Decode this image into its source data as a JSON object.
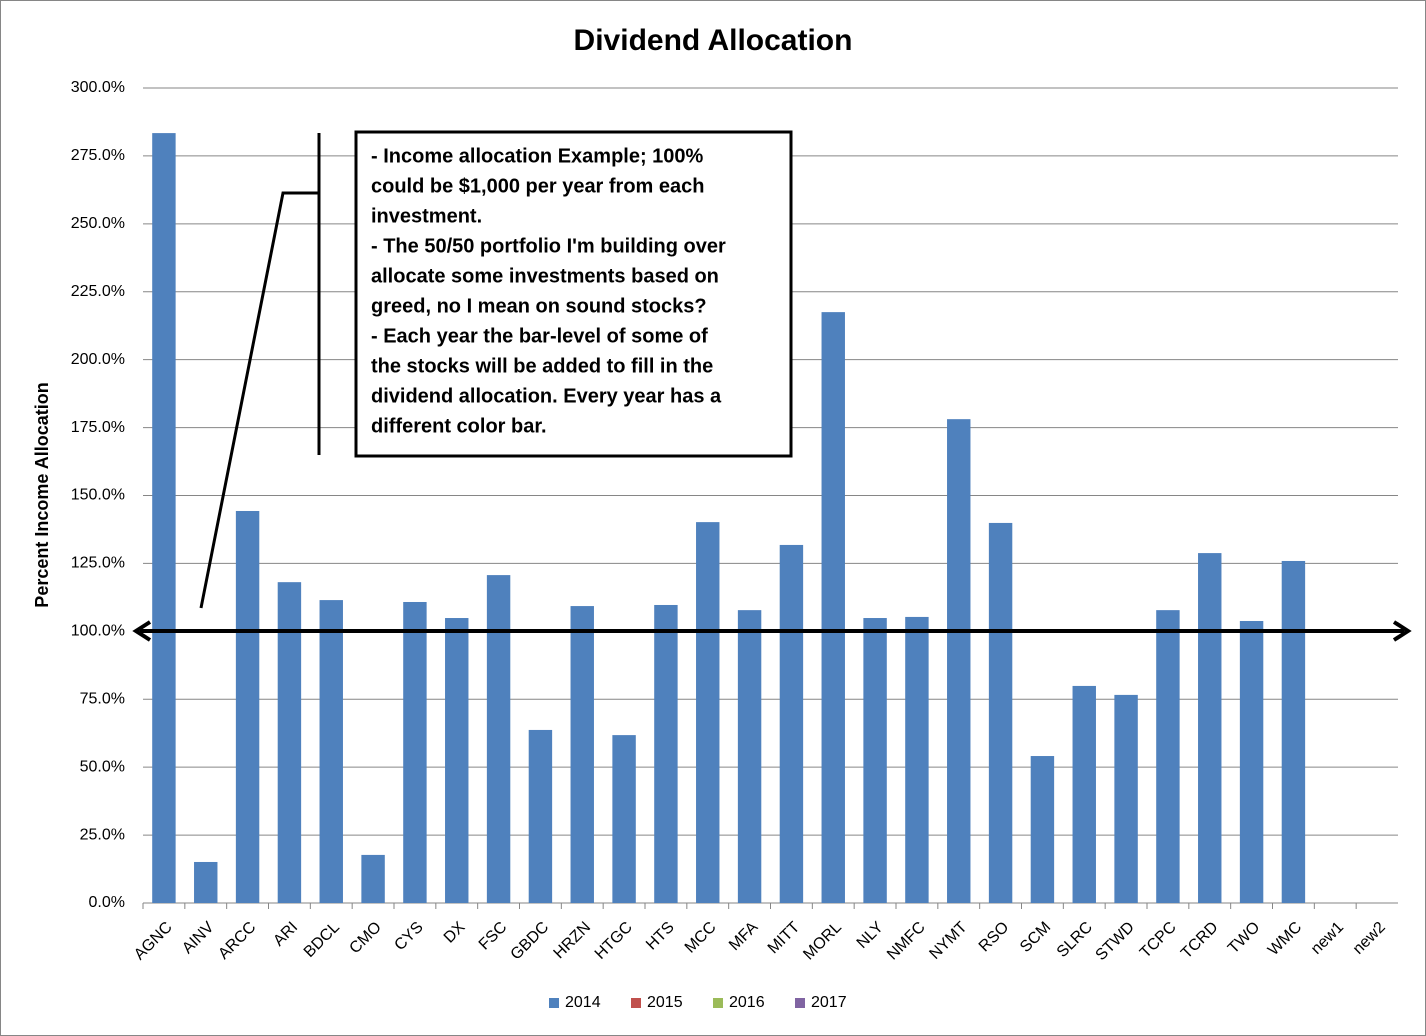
{
  "chart_data": {
    "type": "bar",
    "title": "Dividend Allocation",
    "y_axis_label": "Percent Income Allocation",
    "categories": [
      "AGNC",
      "AINV",
      "ARCC",
      "ARI",
      "BDCL",
      "CMO",
      "CYS",
      "DX",
      "FSC",
      "GBDC",
      "HRZN",
      "HTGC",
      "HTS",
      "MCC",
      "MFA",
      "MITT",
      "MORL",
      "NLY",
      "NMFC",
      "NYMT",
      "RSO",
      "SCM",
      "SLRC",
      "STWD",
      "TCPC",
      "TCRD",
      "TWO",
      "WMC",
      "new1",
      "new2"
    ],
    "series": [
      {
        "name": "2014",
        "color": "#4f81bd",
        "values": [
          283.4,
          15.1,
          144.3,
          118.1,
          111.5,
          17.7,
          110.8,
          104.9,
          120.7,
          63.7,
          109.3,
          61.8,
          109.7,
          140.2,
          107.8,
          131.8,
          217.5,
          104.9,
          105.3,
          178.1,
          139.9,
          54.1,
          79.9,
          76.6,
          107.8,
          128.8,
          103.8,
          125.9,
          null,
          null
        ]
      },
      {
        "name": "2015",
        "color": "#c0504d",
        "values": [
          null,
          null,
          null,
          null,
          null,
          null,
          null,
          null,
          null,
          null,
          null,
          null,
          null,
          null,
          null,
          null,
          null,
          null,
          null,
          null,
          null,
          null,
          null,
          null,
          null,
          null,
          null,
          null,
          null,
          null
        ]
      },
      {
        "name": "2016",
        "color": "#9bbb59",
        "values": [
          null,
          null,
          null,
          null,
          null,
          null,
          null,
          null,
          null,
          null,
          null,
          null,
          null,
          null,
          null,
          null,
          null,
          null,
          null,
          null,
          null,
          null,
          null,
          null,
          null,
          null,
          null,
          null,
          null,
          null
        ]
      },
      {
        "name": "2017",
        "color": "#8064a2",
        "values": [
          null,
          null,
          null,
          null,
          null,
          null,
          null,
          null,
          null,
          null,
          null,
          null,
          null,
          null,
          null,
          null,
          null,
          null,
          null,
          null,
          null,
          null,
          null,
          null,
          null,
          null,
          null,
          null,
          null,
          null
        ]
      }
    ],
    "ylim": [
      0,
      300
    ],
    "yticks": [
      {
        "value": 0,
        "label": "0.0%"
      },
      {
        "value": 25,
        "label": "25.0%"
      },
      {
        "value": 50,
        "label": "50.0%"
      },
      {
        "value": 75,
        "label": "75.0%"
      },
      {
        "value": 100,
        "label": "100.0%"
      },
      {
        "value": 125,
        "label": "125.0%"
      },
      {
        "value": 150,
        "label": "150.0%"
      },
      {
        "value": 175,
        "label": "175.0%"
      },
      {
        "value": 200,
        "label": "200.0%"
      },
      {
        "value": 225,
        "label": "225.0%"
      },
      {
        "value": 250,
        "label": "250.0%"
      },
      {
        "value": 275,
        "label": "275.0%"
      },
      {
        "value": 300,
        "label": "300.0%"
      }
    ],
    "grid": true,
    "legend": "bottom",
    "annotation": [
      "- Income allocation Example; 100%",
      "could be $1,000 per year from each",
      "investment.",
      "- The 50/50 portfolio I'm building over",
      "allocate some investments based on",
      "greed, no I mean on sound stocks?",
      "- Each year the bar-level of some of",
      "the stocks will be added  to fill in the",
      "dividend allocation.  Every year has a",
      "different color bar."
    ]
  }
}
